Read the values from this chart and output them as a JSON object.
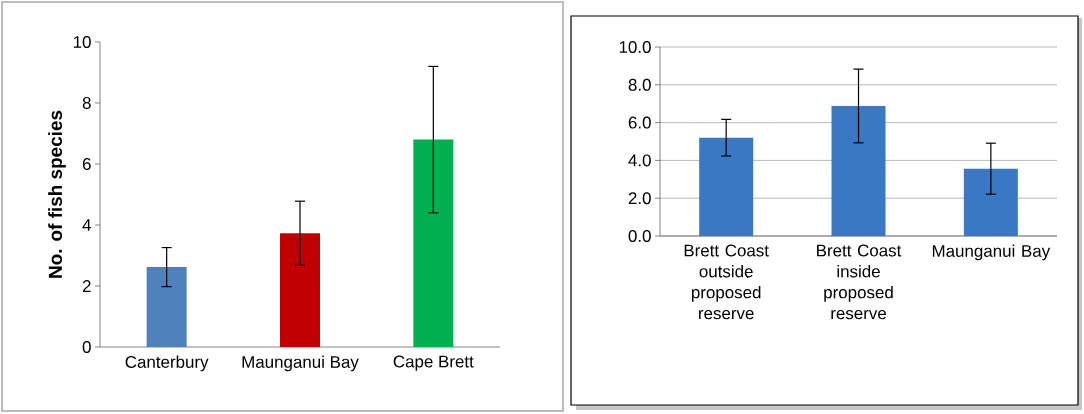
{
  "chart_data": [
    {
      "type": "bar",
      "ylabel": "No. of fish species",
      "categories": [
        "Canterbury",
        "Maunganui Bay",
        "Cape Brett"
      ],
      "values": [
        2.62,
        3.73,
        6.8
      ],
      "colors": [
        "#4f81bd",
        "#c00000",
        "#00b050"
      ],
      "errors": [
        0.64,
        1.05,
        2.4
      ],
      "ylim": [
        0,
        10
      ],
      "yticks": [
        0,
        2,
        4,
        6,
        8,
        10
      ]
    },
    {
      "type": "bar",
      "categories": [
        "Brett Coast outside proposed reserve",
        "Brett Coast inside proposed reserve",
        "Maunganui Bay"
      ],
      "values": [
        5.2,
        6.88,
        3.56
      ],
      "color": "#3a78c3",
      "errors": [
        0.97,
        1.95,
        1.35
      ],
      "ylim": [
        0,
        10
      ],
      "yticks": [
        {
          "value": 0,
          "label": "0.0"
        },
        {
          "value": 2,
          "label": "2.0"
        },
        {
          "value": 4,
          "label": "4.0"
        },
        {
          "value": 6,
          "label": "6.0"
        },
        {
          "value": 8,
          "label": "8.0"
        },
        {
          "value": 10,
          "label": "10.0"
        }
      ],
      "grid": "y"
    }
  ]
}
